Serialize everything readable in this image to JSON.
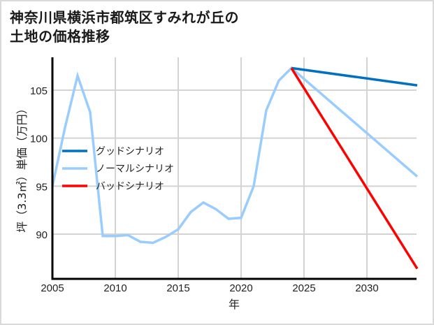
{
  "title_line1": "神奈川県横浜市都筑区すみれが丘の",
  "title_line2": "土地の価格推移",
  "chart_data": {
    "type": "line",
    "title": "神奈川県横浜市都筑区すみれが丘の土地の価格推移",
    "xlabel": "年",
    "ylabel": "坪（3.3㎡）単価（万円）",
    "xlim": [
      2005,
      2034
    ],
    "ylim": [
      86,
      108
    ],
    "xticks": [
      2005,
      2010,
      2015,
      2020,
      2025,
      2030
    ],
    "yticks": [
      90,
      95,
      100,
      105
    ],
    "grid": true,
    "legend_position": "center-left",
    "series": [
      {
        "name": "グッドシナリオ",
        "color": "#0070c0",
        "x": [
          2024,
          2034
        ],
        "values": [
          107.3,
          105.5
        ]
      },
      {
        "name": "ノーマルシナリオ",
        "color": "#99ccff",
        "x": [
          2005,
          2006,
          2007,
          2008,
          2009,
          2010,
          2011,
          2012,
          2013,
          2014,
          2015,
          2016,
          2017,
          2018,
          2019,
          2020,
          2021,
          2022,
          2023,
          2024,
          2034
        ],
        "values": [
          95.0,
          101.1,
          106.5,
          102.7,
          89.8,
          89.8,
          89.9,
          89.2,
          89.1,
          89.7,
          90.5,
          92.3,
          93.3,
          92.6,
          91.6,
          91.7,
          95.0,
          102.9,
          106.0,
          107.3,
          96.0
        ]
      },
      {
        "name": "バッドシナリオ",
        "color": "#ff0000",
        "x": [
          2024,
          2034
        ],
        "values": [
          107.3,
          86.4
        ]
      }
    ]
  }
}
